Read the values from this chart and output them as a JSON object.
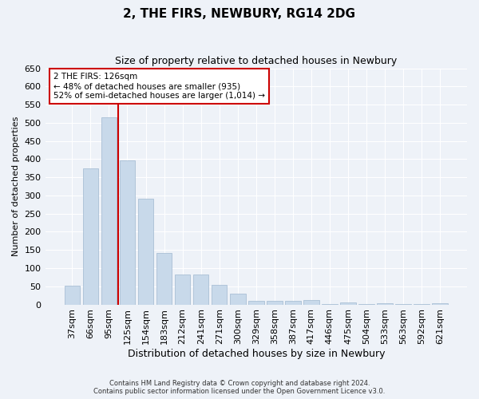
{
  "title": "2, THE FIRS, NEWBURY, RG14 2DG",
  "subtitle": "Size of property relative to detached houses in Newbury",
  "xlabel": "Distribution of detached houses by size in Newbury",
  "ylabel": "Number of detached properties",
  "categories": [
    "37sqm",
    "66sqm",
    "95sqm",
    "125sqm",
    "154sqm",
    "183sqm",
    "212sqm",
    "241sqm",
    "271sqm",
    "300sqm",
    "329sqm",
    "358sqm",
    "387sqm",
    "417sqm",
    "446sqm",
    "475sqm",
    "504sqm",
    "533sqm",
    "563sqm",
    "592sqm",
    "621sqm"
  ],
  "values": [
    51,
    374,
    515,
    397,
    292,
    142,
    82,
    82,
    54,
    29,
    9,
    9,
    11,
    13,
    2,
    5,
    2,
    4,
    2,
    1,
    3
  ],
  "bar_color": "#c8d9ea",
  "bar_edge_color": "#a0b8d0",
  "background_color": "#eef2f8",
  "grid_color": "#ffffff",
  "vline_color": "#cc0000",
  "annotation_line1": "2 THE FIRS: 126sqm",
  "annotation_line2": "← 48% of detached houses are smaller (935)",
  "annotation_line3": "52% of semi-detached houses are larger (1,014) →",
  "annotation_box_color": "#ffffff",
  "annotation_box_edge": "#cc0000",
  "ylim": [
    0,
    650
  ],
  "yticks": [
    0,
    50,
    100,
    150,
    200,
    250,
    300,
    350,
    400,
    450,
    500,
    550,
    600,
    650
  ],
  "footer_line1": "Contains HM Land Registry data © Crown copyright and database right 2024.",
  "footer_line2": "Contains public sector information licensed under the Open Government Licence v3.0."
}
